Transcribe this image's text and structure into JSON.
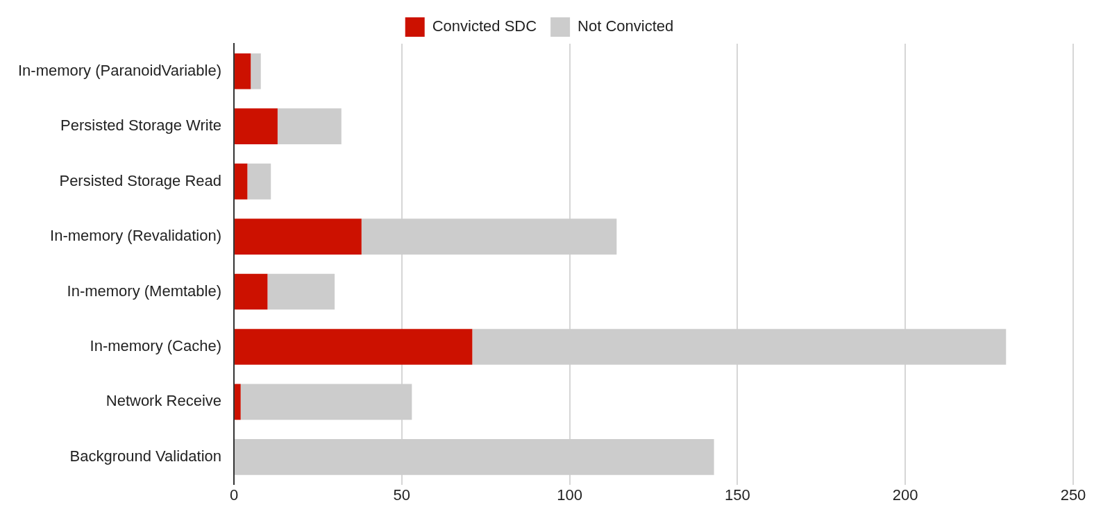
{
  "chart_data": {
    "type": "bar",
    "orientation": "horizontal",
    "stacked": true,
    "categories": [
      "In-memory (ParanoidVariable)",
      "Persisted Storage Write",
      "Persisted Storage Read",
      "In-memory (Revalidation)",
      "In-memory (Memtable)",
      "In-memory (Cache)",
      "Network Receive",
      "Background Validation"
    ],
    "series": [
      {
        "name": "Convicted SDC",
        "color": "#cc1100",
        "values": [
          5,
          13,
          4,
          38,
          10,
          71,
          2,
          0
        ]
      },
      {
        "name": "Not Convicted",
        "color": "#cccccc",
        "values": [
          3,
          19,
          7,
          76,
          20,
          159,
          51,
          143
        ]
      }
    ],
    "xlim": [
      0,
      250
    ],
    "xticks": [
      0,
      50,
      100,
      150,
      200,
      250
    ],
    "grid": "x",
    "legend": "top"
  }
}
